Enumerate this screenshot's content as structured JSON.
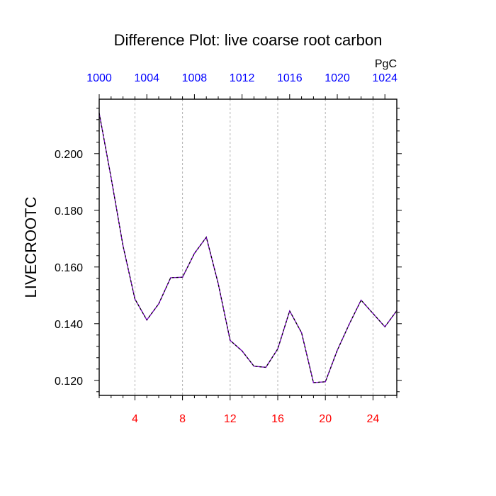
{
  "chart_data": {
    "type": "line",
    "title": "Difference Plot: live coarse root carbon",
    "ylabel": "LIVECROOTC",
    "xlabel": "",
    "top_axis_units": "PgC",
    "xlim": [
      1,
      26
    ],
    "ylim": [
      0.1147,
      0.2192
    ],
    "x_ticks": [
      4,
      8,
      12,
      16,
      20,
      24
    ],
    "y_ticks": [
      0.12,
      0.14,
      0.16,
      0.18,
      0.2
    ],
    "y_tick_labels": [
      "0.120",
      "0.140",
      "0.160",
      "0.180",
      "0.200"
    ],
    "top_ticks": [
      {
        "x": 1,
        "label": "1000"
      },
      {
        "x": 5,
        "label": "1004"
      },
      {
        "x": 9,
        "label": "1008"
      },
      {
        "x": 13,
        "label": "1012"
      },
      {
        "x": 17,
        "label": "1016"
      },
      {
        "x": 21,
        "label": "1020"
      },
      {
        "x": 25,
        "label": "1024"
      }
    ],
    "gridlines": "vertical dashed at bottom ticks",
    "series": [
      {
        "color": "#7a00c8",
        "dash_color": "#000000",
        "x": [
          1,
          2,
          3,
          4,
          5,
          6,
          7,
          8,
          9,
          10,
          11,
          12,
          13,
          14,
          15,
          16,
          17,
          18,
          19,
          20,
          21,
          22,
          23,
          24,
          25,
          26
        ],
        "values": [
          0.2143,
          0.1915,
          0.1675,
          0.1487,
          0.1413,
          0.147,
          0.1562,
          0.1564,
          0.1648,
          0.1705,
          0.1541,
          0.1341,
          0.1304,
          0.125,
          0.1246,
          0.1311,
          0.1445,
          0.1368,
          0.1192,
          0.1195,
          0.1306,
          0.1398,
          0.1483,
          0.1436,
          0.1389,
          0.1446
        ]
      }
    ],
    "colors": {
      "bottom_tick_labels": "#ff0000",
      "top_tick_labels": "#0000ff",
      "axis": "#000000",
      "grid": "#b4b4b4"
    }
  }
}
